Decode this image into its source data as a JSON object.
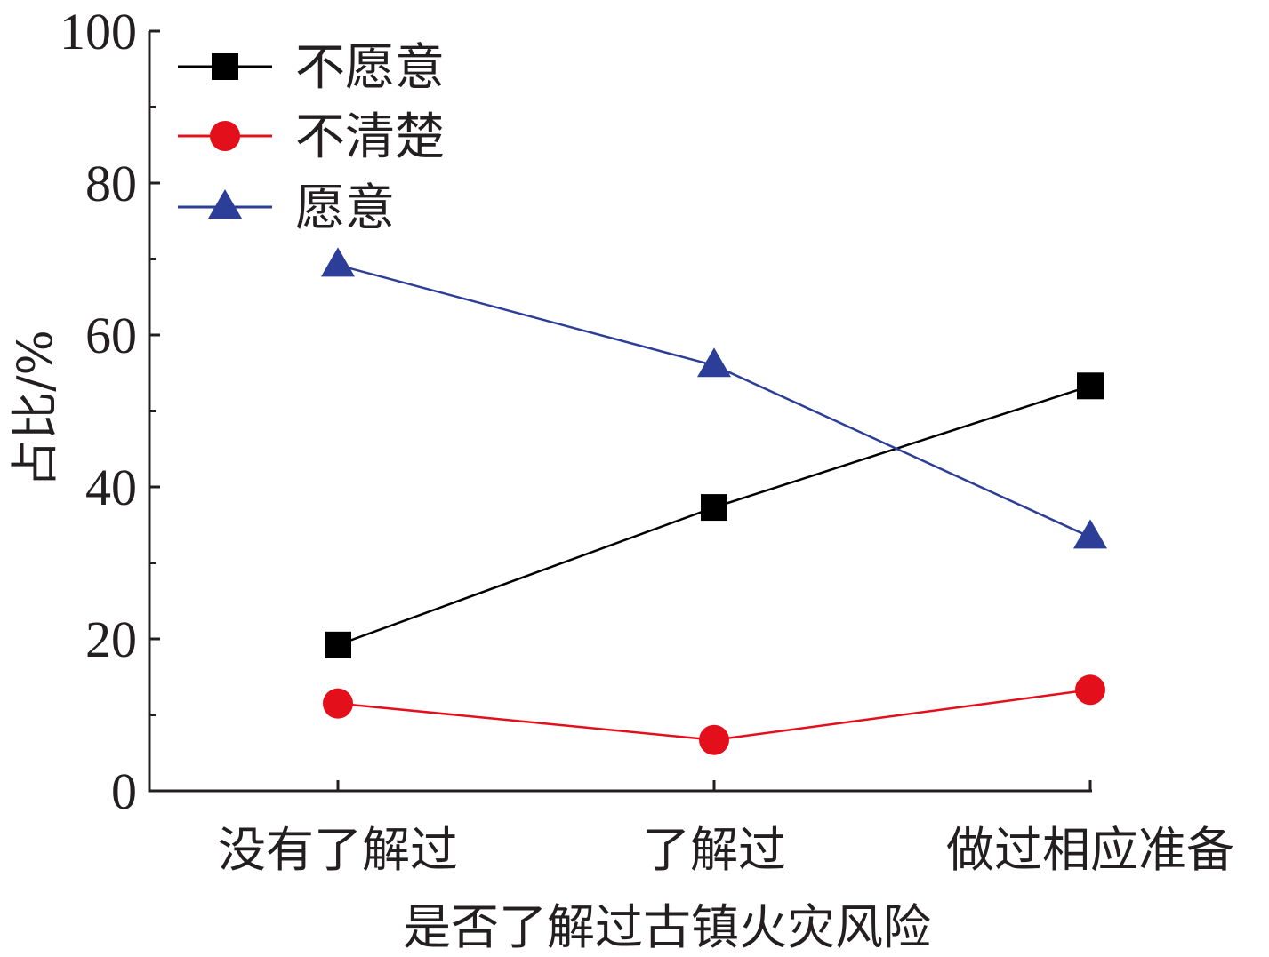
{
  "chart_data": {
    "type": "line",
    "categories": [
      "没有了解过",
      "了解过",
      "做过相应准备"
    ],
    "xlabel": "是否了解过古镇火灾风险",
    "ylabel": "占比/%",
    "ylim": [
      0,
      100
    ],
    "yticks": [
      0,
      20,
      40,
      60,
      80,
      100
    ],
    "yticks_minor": [
      10,
      30,
      50,
      70,
      90
    ],
    "grid": false,
    "legend_position": "top-left",
    "series": [
      {
        "name": "不愿意",
        "values": [
          19.2,
          37.3,
          53.3
        ],
        "color": "#000000",
        "marker": "square"
      },
      {
        "name": "不清楚",
        "values": [
          11.5,
          6.7,
          13.3
        ],
        "color": "#e3101b",
        "marker": "circle"
      },
      {
        "name": "愿意",
        "values": [
          69.2,
          56.0,
          33.4
        ],
        "color": "#2c3e97",
        "marker": "triangle"
      }
    ]
  }
}
